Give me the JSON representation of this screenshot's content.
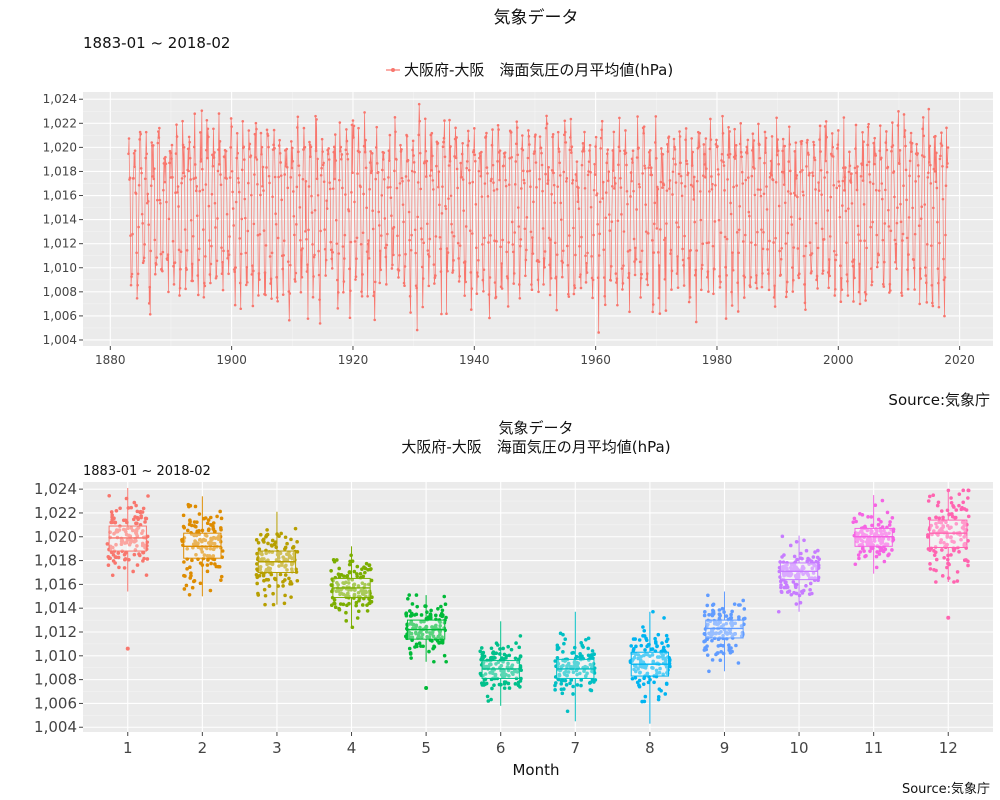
{
  "chart_data": [
    {
      "type": "line",
      "title": "気象データ",
      "subtitle": "1883-01 ~ 2018-02",
      "legend_label": "大阪府-大阪　海面気圧の月平均値(hPa)",
      "legend_position": "top",
      "series_color": "#F8766D",
      "x_range": [
        1883.0,
        2018.1
      ],
      "xlim": [
        1875.5,
        2025.5
      ],
      "ylim": [
        1003.5,
        1024.6
      ],
      "x_ticks": [
        1880,
        1900,
        1920,
        1940,
        1960,
        1980,
        2000,
        2020
      ],
      "y_ticks": [
        1004,
        1006,
        1008,
        1010,
        1012,
        1014,
        1016,
        1018,
        1020,
        1022,
        1024
      ],
      "y_tick_labels": [
        "1,004",
        "1,006",
        "1,008",
        "1,010",
        "1,012",
        "1,014",
        "1,016",
        "1,018",
        "1,020",
        "1,022",
        "1,024"
      ],
      "monthly_mean_by_month": [
        1019.9,
        1019.3,
        1017.9,
        1015.8,
        1012.2,
        1009.0,
        1008.9,
        1009.3,
        1012.3,
        1017.1,
        1019.9,
        1020.3
      ],
      "notable_extremes": {
        "max": 1024.0,
        "min": 1004.3
      },
      "grid": true,
      "source": "Source:気象庁"
    },
    {
      "type": "box",
      "title": "気象データ",
      "subtitle": "大阪府-大阪　海面気圧の月平均値(hPa)",
      "period": "1883-01 ~ 2018-02",
      "xlabel": "Month",
      "categories": [
        "1",
        "2",
        "3",
        "4",
        "5",
        "6",
        "7",
        "8",
        "9",
        "10",
        "11",
        "12"
      ],
      "colors": [
        "#F8766D",
        "#DE8C00",
        "#B79F00",
        "#7CAE00",
        "#00BA38",
        "#00C08B",
        "#00BFC4",
        "#00B4F0",
        "#619CFF",
        "#C77CFF",
        "#F564E3",
        "#FF64B0"
      ],
      "boxes": [
        {
          "month": "1",
          "q1": 1018.8,
          "median": 1019.9,
          "q3": 1020.9,
          "whisker_low": 1015.4,
          "whisker_high": 1024.1,
          "outliers": [
            1010.6
          ]
        },
        {
          "month": "2",
          "q1": 1018.2,
          "median": 1019.2,
          "q3": 1020.3,
          "whisker_low": 1015.0,
          "whisker_high": 1023.4,
          "outliers": []
        },
        {
          "month": "3",
          "q1": 1017.0,
          "median": 1017.9,
          "q3": 1018.8,
          "whisker_low": 1014.3,
          "whisker_high": 1022.1,
          "outliers": []
        },
        {
          "month": "4",
          "q1": 1014.9,
          "median": 1015.7,
          "q3": 1016.5,
          "whisker_low": 1012.4,
          "whisker_high": 1019.2,
          "outliers": []
        },
        {
          "month": "5",
          "q1": 1011.4,
          "median": 1012.2,
          "q3": 1013.0,
          "whisker_low": 1009.5,
          "whisker_high": 1015.1,
          "outliers": [
            1007.3
          ]
        },
        {
          "month": "6",
          "q1": 1008.1,
          "median": 1008.9,
          "q3": 1009.6,
          "whisker_low": 1005.8,
          "whisker_high": 1012.9,
          "outliers": []
        },
        {
          "month": "7",
          "q1": 1008.1,
          "median": 1008.9,
          "q3": 1009.7,
          "whisker_low": 1004.5,
          "whisker_high": 1013.7,
          "outliers": []
        },
        {
          "month": "8",
          "q1": 1008.3,
          "median": 1009.3,
          "q3": 1010.3,
          "whisker_low": 1004.3,
          "whisker_high": 1013.7,
          "outliers": []
        },
        {
          "month": "9",
          "q1": 1011.5,
          "median": 1012.3,
          "q3": 1013.0,
          "whisker_low": 1008.7,
          "whisker_high": 1015.4,
          "outliers": []
        },
        {
          "month": "10",
          "q1": 1016.4,
          "median": 1017.1,
          "q3": 1017.8,
          "whisker_low": 1013.7,
          "whisker_high": 1020.1,
          "outliers": []
        },
        {
          "month": "11",
          "q1": 1019.2,
          "median": 1020.0,
          "q3": 1020.7,
          "whisker_low": 1016.9,
          "whisker_high": 1023.5,
          "outliers": []
        },
        {
          "month": "12",
          "q1": 1019.1,
          "median": 1020.3,
          "q3": 1021.4,
          "whisker_low": 1016.2,
          "whisker_high": 1023.9,
          "outliers": [
            1013.2
          ]
        }
      ],
      "jitter_points": true,
      "ylim": [
        1003.6,
        1024.6
      ],
      "y_ticks": [
        1004,
        1006,
        1008,
        1010,
        1012,
        1014,
        1016,
        1018,
        1020,
        1022,
        1024
      ],
      "y_tick_labels": [
        "1,004",
        "1,006",
        "1,008",
        "1,010",
        "1,012",
        "1,014",
        "1,016",
        "1,018",
        "1,020",
        "1,022",
        "1,024"
      ],
      "grid": true,
      "source": "Source:気象庁"
    }
  ]
}
